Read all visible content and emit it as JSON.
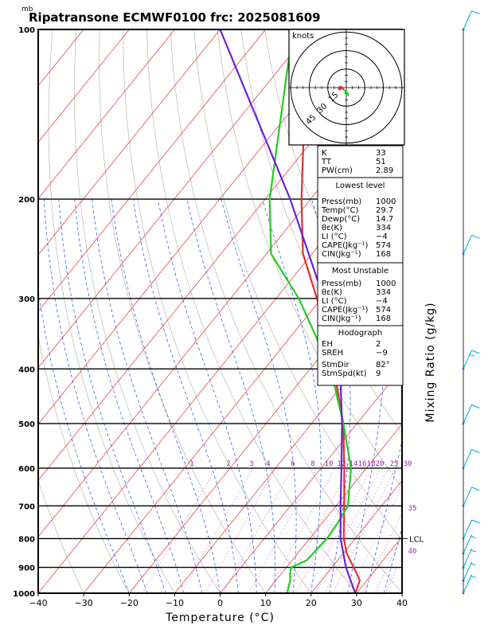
{
  "chart_data": {
    "type": "line",
    "title": "Ripatransone ECMWF0100 frc: 2025081609",
    "pressure_unit": "mb",
    "xlabel": "Temperature (°C)",
    "ylabel_right": "Mixing Ratio (g/kg)",
    "x_ticks": [
      -40,
      -30,
      -20,
      -10,
      0,
      10,
      20,
      30,
      40
    ],
    "y_ticks": [
      100,
      200,
      300,
      400,
      500,
      600,
      700,
      800,
      900,
      1000
    ],
    "xlim": [
      -40,
      40
    ],
    "ylim": [
      1000,
      100
    ],
    "y_scale": "log",
    "skew_deg_per_log_decade": 100,
    "mixing_ratio_labels": [
      "1",
      "2",
      "3",
      "4",
      "6",
      "8",
      "10",
      "12",
      "14",
      "16",
      "18",
      "20",
      "25",
      "30",
      "35",
      "40"
    ],
    "lcl_label": "LCL",
    "lcl_pressure": 800,
    "series": [
      {
        "name": "Temperature",
        "color": "#e03030",
        "points": [
          [
            1000,
            29.7
          ],
          [
            950,
            28.5
          ],
          [
            925,
            26.7
          ],
          [
            900,
            24.8
          ],
          [
            850,
            20.8
          ],
          [
            800,
            17.5
          ],
          [
            700,
            11.8
          ],
          [
            600,
            5.1
          ],
          [
            500,
            -3.0
          ],
          [
            400,
            -14.8
          ],
          [
            300,
            -31.0
          ],
          [
            250,
            -42.0
          ],
          [
            200,
            -52.0
          ],
          [
            150,
            -64.0
          ],
          [
            100,
            -78.0
          ]
        ]
      },
      {
        "name": "Dew point",
        "color": "#22cc22",
        "points": [
          [
            1000,
            14.7
          ],
          [
            950,
            13.2
          ],
          [
            925,
            12.0
          ],
          [
            900,
            11.0
          ],
          [
            875,
            13.2
          ],
          [
            800,
            13.8
          ],
          [
            750,
            13.4
          ],
          [
            700,
            12.6
          ],
          [
            600,
            6.6
          ],
          [
            500,
            -3.0
          ],
          [
            400,
            -15.5
          ],
          [
            300,
            -35.0
          ],
          [
            250,
            -49.0
          ],
          [
            200,
            -59.0
          ],
          [
            100,
            -84.0
          ]
        ]
      },
      {
        "name": "Parcel",
        "color": "#6a22d8",
        "points": [
          [
            1000,
            29.7
          ],
          [
            900,
            23.1
          ],
          [
            800,
            16.8
          ],
          [
            700,
            11.0
          ],
          [
            600,
            4.5
          ],
          [
            500,
            -3.3
          ],
          [
            400,
            -13.4
          ],
          [
            300,
            -29.5
          ],
          [
            200,
            -54.5
          ],
          [
            100,
            -100.0
          ]
        ]
      }
    ],
    "hodograph": {
      "unit_label": "knots",
      "rings_kt": [
        15,
        30,
        45
      ]
    },
    "indices": [
      {
        "label": "K",
        "value": "33"
      },
      {
        "label": "TT",
        "value": "51"
      },
      {
        "label": "PW(cm)",
        "value": "2.89"
      }
    ],
    "lowest_level": {
      "header": "Lowest level",
      "rows": [
        {
          "label": "Press(mb)",
          "value": "1000"
        },
        {
          "label": "Temp(°C)",
          "value": "29.7"
        },
        {
          "label": "Dewp(°C)",
          "value": "14.7"
        },
        {
          "label": "θε(K)",
          "value": "334"
        },
        {
          "label": "LI (°C)",
          "value": "−4"
        },
        {
          "label": "CAPE(Jkg⁻¹)",
          "value": "574"
        },
        {
          "label": "CIN(Jkg⁻¹)",
          "value": "168"
        }
      ]
    },
    "most_unstable": {
      "header": "Most Unstable",
      "rows": [
        {
          "label": "Press(mb)",
          "value": "1000"
        },
        {
          "label": "θε(K)",
          "value": "334"
        },
        {
          "label": "LI (°C)",
          "value": "−4"
        },
        {
          "label": "CAPE(Jkg⁻¹)",
          "value": "574"
        },
        {
          "label": "CIN(Jkg⁻¹)",
          "value": "168"
        }
      ]
    },
    "hodograph_params": {
      "header": "Hodograph",
      "rows": [
        {
          "label": "EH",
          "value": "2"
        },
        {
          "label": "SREH",
          "value": "−9"
        },
        {
          "label": "StmDir",
          "value": "82°"
        },
        {
          "label": "StmSpd(kt)",
          "value": "9"
        }
      ]
    },
    "wind_barbs_kt": [
      {
        "p": 100,
        "speed": 10
      },
      {
        "p": 250,
        "speed": 10
      },
      {
        "p": 400,
        "speed": 15
      },
      {
        "p": 500,
        "speed": 10
      },
      {
        "p": 600,
        "speed": 10
      },
      {
        "p": 700,
        "speed": 10
      },
      {
        "p": 800,
        "speed": 10
      },
      {
        "p": 850,
        "speed": 5
      },
      {
        "p": 900,
        "speed": 5
      },
      {
        "p": 950,
        "speed": 5
      },
      {
        "p": 1000,
        "speed": 5
      }
    ]
  }
}
